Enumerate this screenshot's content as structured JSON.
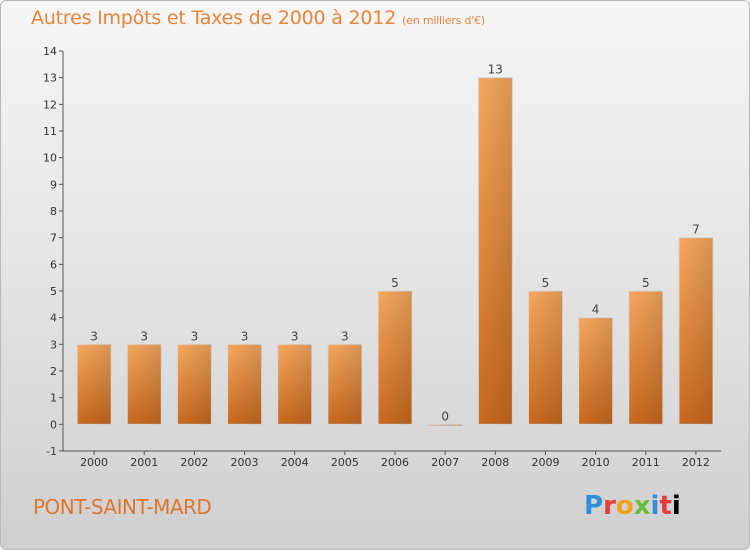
{
  "header": {
    "title": "Autres Impôts et Taxes de 2000 à 2012",
    "unit": "(en milliers d'€)"
  },
  "footer": {
    "commune": "PONT-SAINT-MARD",
    "logo": [
      "P",
      "r",
      "o",
      "x",
      "i",
      "t",
      "i"
    ]
  },
  "colors": {
    "title": "#e8833a",
    "bar_light": "#f4a35a",
    "bar_dark": "#c9691e"
  },
  "chart_data": {
    "type": "bar",
    "title": "Autres Impôts et Taxes de 2000 à 2012",
    "subtitle": "(en milliers d'€)",
    "xlabel": "",
    "ylabel": "",
    "categories": [
      "2000",
      "2001",
      "2002",
      "2003",
      "2004",
      "2005",
      "2006",
      "2007",
      "2008",
      "2009",
      "2010",
      "2011",
      "2012"
    ],
    "values": [
      3,
      3,
      3,
      3,
      3,
      3,
      5,
      0,
      13,
      5,
      4,
      5,
      7
    ],
    "data_labels": [
      "3",
      "3",
      "3",
      "3",
      "3",
      "3",
      "5",
      "0",
      "13",
      "5",
      "4",
      "5",
      "7"
    ],
    "ylim": [
      -1,
      14
    ],
    "yticks": [
      "-1",
      "0",
      "1",
      "2",
      "3",
      "4",
      "5",
      "6",
      "7",
      "8",
      "9",
      "10",
      "11",
      "12",
      "13",
      "14"
    ],
    "ytick_values": [
      -1,
      0,
      1,
      2,
      3,
      4,
      5,
      6,
      7,
      8,
      9,
      10,
      11,
      12,
      13,
      14
    ],
    "grid": false,
    "legend": "none"
  }
}
